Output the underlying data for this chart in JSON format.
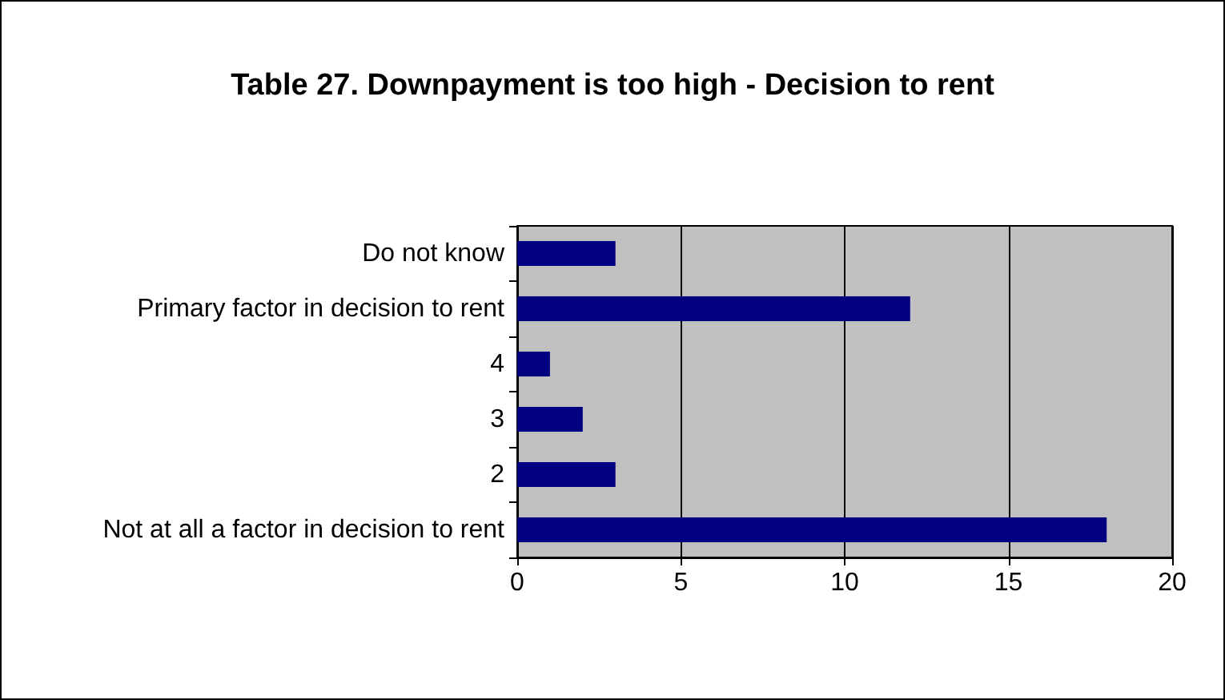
{
  "chart_data": {
    "type": "bar",
    "orientation": "horizontal",
    "title": "Table 27. Downpayment is too high - Decision to rent",
    "categories": [
      "Do not know",
      "Primary factor in decision to rent",
      "4",
      "3",
      "2",
      "Not at all a factor in decision to rent"
    ],
    "values": [
      3,
      12,
      1,
      2,
      3,
      18
    ],
    "color": "#000080",
    "xlim": [
      0,
      20
    ],
    "xticks": [
      0,
      5,
      10,
      15,
      20
    ],
    "grid": "x"
  }
}
